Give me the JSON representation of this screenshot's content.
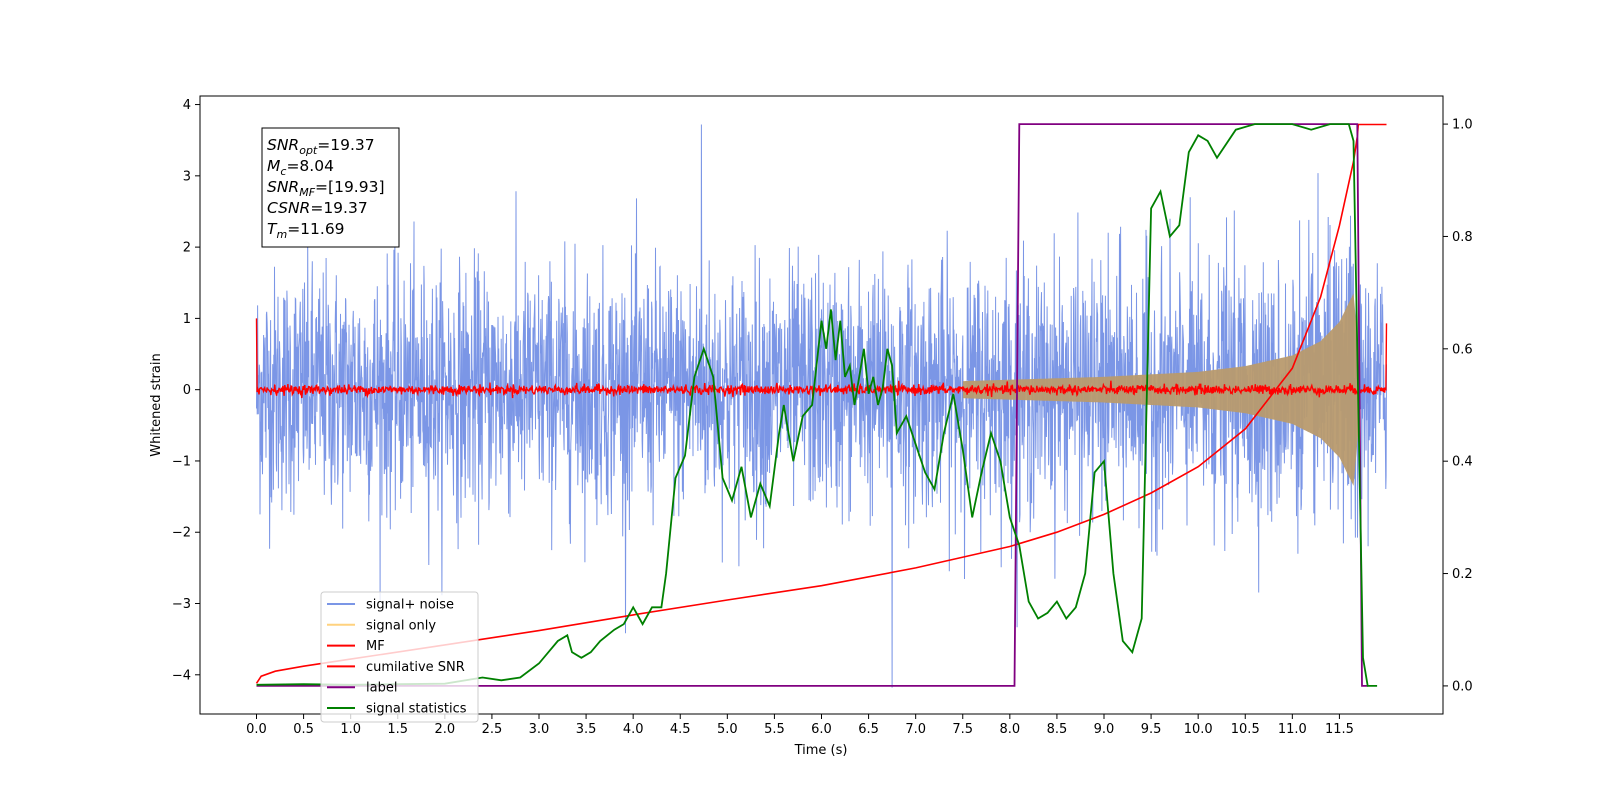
{
  "chart_data": {
    "type": "line",
    "xlabel": "Time (s)",
    "ylabel": "Whitened strain",
    "xlim": [
      -0.6,
      12.6
    ],
    "ylim": [
      -4.55,
      4.12
    ],
    "y2lim": [
      -0.05,
      1.05
    ],
    "x_ticks": [
      "0.0",
      "0.5",
      "1.0",
      "1.5",
      "2.0",
      "2.5",
      "3.0",
      "3.5",
      "4.0",
      "4.5",
      "5.0",
      "5.5",
      "6.0",
      "6.5",
      "7.0",
      "7.5",
      "8.0",
      "8.5",
      "9.0",
      "9.5",
      "10.0",
      "10.5",
      "11.0",
      "11.5"
    ],
    "y_ticks": [
      "4",
      "3",
      "2",
      "1",
      "0",
      "−1",
      "−2",
      "−3",
      "−4"
    ],
    "y2_ticks": [
      "1.0",
      "0.8",
      "0.6",
      "0.4",
      "0.2",
      "0.0"
    ],
    "annotation": {
      "lines": [
        {
          "sym": "SNR",
          "sub": "opt",
          "val": "=19.37"
        },
        {
          "sym": "M",
          "sub": "c",
          "val": "=8.04"
        },
        {
          "sym": "SNR",
          "sub": "MF",
          "val": "=[19.93]"
        },
        {
          "sym": "CSNR",
          "sub": "",
          "val": "=19.37"
        },
        {
          "sym": "T",
          "sub": "m",
          "val": "=11.69"
        }
      ]
    },
    "legend": {
      "placement": "lower-left",
      "entries": [
        {
          "label": "signal+ noise",
          "color": "#7b96e6"
        },
        {
          "label": "signal only",
          "color": "#ffd27f"
        },
        {
          "label": "MF",
          "color": "#ff0000"
        },
        {
          "label": "cumilative SNR",
          "color": "#ff0000"
        },
        {
          "label": "label",
          "color": "#800080"
        },
        {
          "label": "signal statistics",
          "color": "#008000"
        }
      ]
    },
    "series": [
      {
        "name": "signal+ noise",
        "axis": "left",
        "color": "#7b96e6",
        "t_range": [
          0.0,
          12.0
        ],
        "noise_std": 0.85,
        "peak_values": {
          "max": 3.72,
          "min": -4.18
        }
      },
      {
        "name": "signal only",
        "axis": "left",
        "color": "#ffd27f",
        "envelope": {
          "x": [
            7.5,
            9.0,
            10.0,
            10.5,
            11.0,
            11.3,
            11.5,
            11.65,
            11.72
          ],
          "y": [
            0.12,
            0.18,
            0.25,
            0.33,
            0.48,
            0.68,
            0.95,
            1.35,
            0.3
          ]
        }
      },
      {
        "name": "MF",
        "axis": "left",
        "color": "#ff0000",
        "t_range": [
          0.0,
          12.0
        ],
        "noise_std": 0.035,
        "edge_values": {
          "start": 1.0,
          "end": 0.93
        }
      },
      {
        "name": "cumilative SNR",
        "axis": "left",
        "color": "#ff0000",
        "x": [
          0.0,
          0.05,
          0.2,
          0.5,
          1.0,
          2.0,
          3.0,
          4.0,
          5.0,
          6.0,
          7.0,
          8.0,
          8.5,
          9.0,
          9.5,
          10.0,
          10.5,
          11.0,
          11.3,
          11.5,
          11.65,
          11.69,
          11.7,
          12.0
        ],
        "y": [
          -4.12,
          -4.02,
          -3.95,
          -3.88,
          -3.78,
          -3.58,
          -3.38,
          -3.16,
          -2.95,
          -2.75,
          -2.5,
          -2.2,
          -2.0,
          -1.75,
          -1.45,
          -1.08,
          -0.55,
          0.3,
          1.3,
          2.3,
          3.2,
          3.55,
          3.72,
          3.72
        ]
      },
      {
        "name": "label",
        "axis": "right",
        "color": "#800080",
        "x": [
          0.0,
          8.05,
          8.1,
          11.69,
          11.74,
          11.8
        ],
        "y": [
          0.0,
          0.0,
          1.0,
          1.0,
          0.0,
          0.0
        ]
      },
      {
        "name": "signal statistics",
        "axis": "right",
        "color": "#008000",
        "x": [
          0.0,
          0.5,
          1.0,
          1.5,
          2.0,
          2.4,
          2.6,
          2.8,
          3.0,
          3.1,
          3.2,
          3.3,
          3.35,
          3.45,
          3.55,
          3.65,
          3.8,
          3.9,
          4.0,
          4.1,
          4.2,
          4.3,
          4.35,
          4.45,
          4.55,
          4.65,
          4.75,
          4.85,
          4.95,
          5.05,
          5.15,
          5.25,
          5.35,
          5.45,
          5.55,
          5.6,
          5.7,
          5.8,
          5.9,
          6.0,
          6.05,
          6.1,
          6.15,
          6.2,
          6.25,
          6.3,
          6.35,
          6.4,
          6.45,
          6.5,
          6.55,
          6.6,
          6.65,
          6.7,
          6.75,
          6.8,
          6.9,
          7.0,
          7.1,
          7.2,
          7.3,
          7.4,
          7.5,
          7.6,
          7.7,
          7.8,
          7.9,
          8.0,
          8.1,
          8.2,
          8.3,
          8.4,
          8.5,
          8.6,
          8.7,
          8.8,
          8.9,
          9.0,
          9.1,
          9.2,
          9.3,
          9.4,
          9.5,
          9.6,
          9.7,
          9.8,
          9.9,
          10.0,
          10.1,
          10.2,
          10.4,
          10.6,
          10.8,
          11.0,
          11.2,
          11.4,
          11.6,
          11.65,
          11.7,
          11.75,
          11.8,
          11.9
        ],
        "y": [
          0.002,
          0.003,
          0.002,
          0.003,
          0.004,
          0.015,
          0.01,
          0.015,
          0.04,
          0.06,
          0.08,
          0.09,
          0.06,
          0.05,
          0.06,
          0.08,
          0.1,
          0.11,
          0.14,
          0.11,
          0.14,
          0.14,
          0.2,
          0.37,
          0.41,
          0.55,
          0.6,
          0.55,
          0.37,
          0.33,
          0.39,
          0.3,
          0.36,
          0.32,
          0.45,
          0.5,
          0.4,
          0.48,
          0.5,
          0.65,
          0.6,
          0.67,
          0.58,
          0.65,
          0.55,
          0.57,
          0.5,
          0.55,
          0.6,
          0.52,
          0.55,
          0.5,
          0.53,
          0.6,
          0.57,
          0.45,
          0.48,
          0.43,
          0.38,
          0.35,
          0.45,
          0.52,
          0.42,
          0.3,
          0.38,
          0.45,
          0.4,
          0.3,
          0.25,
          0.15,
          0.12,
          0.13,
          0.15,
          0.12,
          0.14,
          0.2,
          0.38,
          0.4,
          0.2,
          0.08,
          0.06,
          0.12,
          0.85,
          0.88,
          0.8,
          0.82,
          0.95,
          0.98,
          0.97,
          0.94,
          0.99,
          1.0,
          1.0,
          1.0,
          0.99,
          1.0,
          1.0,
          0.97,
          0.5,
          0.05,
          0.0,
          0.0
        ]
      }
    ]
  }
}
